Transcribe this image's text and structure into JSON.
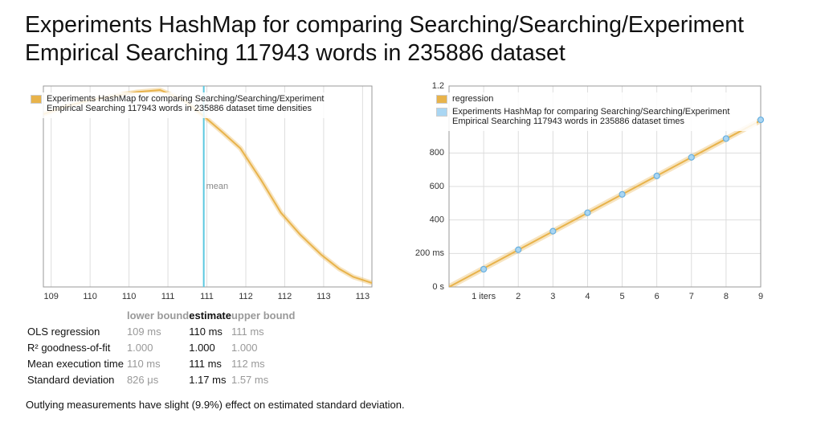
{
  "title": "Experiments HashMap for comparing Searching/Searching/Experiment Empirical Searching 117943 words in 235886 dataset",
  "chart_data": [
    {
      "type": "density",
      "x": [
        108.9,
        109.2,
        109.5,
        109.8,
        110.1,
        110.4,
        110.7,
        110.96,
        111.2,
        111.43,
        111.7,
        111.95,
        112.2,
        112.47,
        112.7,
        112.88,
        113.12
      ],
      "series": [
        {
          "name": "Experiments HashMap for comparing Searching/Searching/Experiment Empirical Searching 117943 words in 235886 dataset time densities",
          "color": "#e8b34b",
          "values": [
            0.86,
            0.9,
            0.93,
            0.95,
            0.97,
            0.98,
            0.93,
            0.85,
            0.77,
            0.69,
            0.53,
            0.37,
            0.26,
            0.16,
            0.09,
            0.05,
            0.02
          ]
        }
      ],
      "mean": {
        "value": 110.96,
        "label": "mean"
      },
      "xlim": [
        108.9,
        113.12
      ],
      "ylim": [
        0,
        1
      ],
      "xticks": [
        109,
        {
          "value": 109.5,
          "label": "110"
        },
        110,
        {
          "value": 110.5,
          "label": "111"
        },
        111,
        {
          "value": 111.5,
          "label": "112"
        },
        112,
        {
          "value": 112.5,
          "label": "113"
        },
        113
      ],
      "grid": true,
      "legend": "top-left"
    },
    {
      "type": "regression",
      "series": [
        {
          "name": "regression",
          "color": "#e8b34b",
          "x": [
            0,
            9
          ],
          "values": [
            0,
            995
          ]
        },
        {
          "name": "Experiments HashMap for comparing Searching/Searching/Experiment Empirical Searching 117943 words in 235886 dataset times",
          "color": "#a9d6f3",
          "x": [
            1,
            2,
            3,
            4,
            5,
            6,
            7,
            8,
            9
          ],
          "values": [
            106,
            222,
            333,
            443,
            553,
            663,
            774,
            886,
            998
          ]
        }
      ],
      "xlim": [
        0,
        9
      ],
      "ylim": [
        0,
        1200
      ],
      "xticks": [
        {
          "value": 1,
          "label": "1 iters"
        },
        2,
        3,
        4,
        5,
        6,
        7,
        8,
        9
      ],
      "yticks": [
        {
          "value": 0,
          "label": "0 s"
        },
        {
          "value": 200,
          "label": "200 ms"
        },
        400,
        600,
        800,
        {
          "value": 1200,
          "label": "1.2"
        }
      ],
      "grid": true,
      "legend": "top-left"
    }
  ],
  "table": {
    "columns": [
      "lower bound",
      "estimate",
      "upper bound"
    ],
    "rows": [
      {
        "label": "OLS regression",
        "values": [
          "109 ms",
          "110 ms",
          "111 ms"
        ]
      },
      {
        "label": "R² goodness-of-fit",
        "values": [
          "1.000",
          "1.000",
          "1.000"
        ]
      },
      {
        "label": "Mean execution time",
        "values": [
          "110 ms",
          "111 ms",
          "112 ms"
        ]
      },
      {
        "label": "Standard deviation",
        "values": [
          "826 μs",
          "1.17 ms",
          "1.57 ms"
        ]
      }
    ]
  },
  "footnote": "Outlying measurements have slight (9.9%) effect on estimated standard deviation."
}
